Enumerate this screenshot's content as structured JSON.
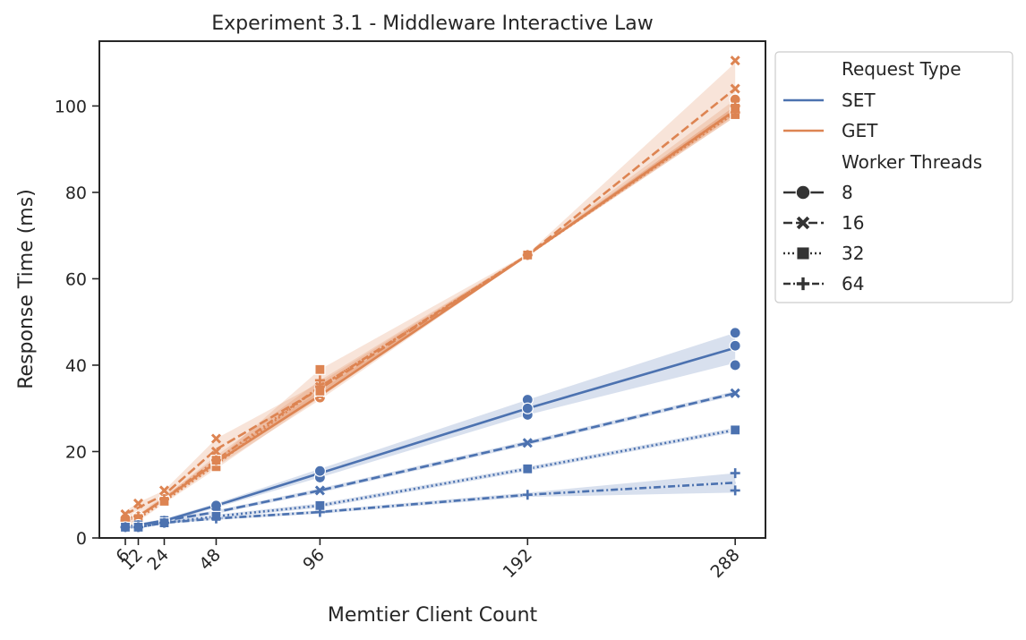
{
  "chart_data": {
    "type": "line",
    "title": "Experiment 3.1 - Middleware Interactive Law",
    "xlabel": "Memtier Client Count",
    "ylabel": "Response Time (ms)",
    "x": [
      6,
      12,
      24,
      48,
      96,
      192,
      288
    ],
    "x_tick_labels": [
      "6",
      "12",
      "24",
      "48",
      "96",
      "192",
      "288"
    ],
    "xlim": [
      -6,
      302
    ],
    "ylim": [
      0,
      115
    ],
    "y_ticks": [
      0,
      20,
      40,
      60,
      80,
      100
    ],
    "y_tick_labels": [
      "0",
      "20",
      "40",
      "60",
      "80",
      "100"
    ],
    "grid": false,
    "legend": {
      "placement": "outside-right",
      "hue_title": "Request Type",
      "style_title": "Worker Threads",
      "hue_entries": [
        "SET",
        "GET"
      ],
      "style_entries": [
        "8",
        "16",
        "32",
        "64"
      ]
    },
    "colors": {
      "SET": "#4c72b0",
      "GET": "#dd8452",
      "style_legend": "#333333"
    },
    "series": [
      {
        "request_type": "GET",
        "worker_threads": "8",
        "marker": "circle",
        "values": [
          4.5,
          5.0,
          9.0,
          17.5,
          33.0,
          65.5,
          99.0
        ],
        "ci_low": [
          4.0,
          4.5,
          8.5,
          16.5,
          32.0,
          65.3,
          97.5
        ],
        "ci_high": [
          5.0,
          5.8,
          9.6,
          18.5,
          34.0,
          65.8,
          101.5
        ],
        "points": [
          [
            6,
            4.5
          ],
          [
            12,
            4.9
          ],
          [
            24,
            9.0
          ],
          [
            48,
            17.5
          ],
          [
            96,
            32.5
          ],
          [
            96,
            33.5
          ],
          [
            192,
            65.5
          ],
          [
            288,
            98.5
          ],
          [
            288,
            101.5
          ]
        ]
      },
      {
        "request_type": "GET",
        "worker_threads": "16",
        "marker": "x",
        "values": [
          5.5,
          7.0,
          10.0,
          20.5,
          34.5,
          65.5,
          104.0
        ],
        "ci_low": [
          4.8,
          6.0,
          9.0,
          18.0,
          33.0,
          65.3,
          98.0
        ],
        "ci_high": [
          6.2,
          8.2,
          11.0,
          23.0,
          36.0,
          65.8,
          110.0
        ],
        "points": [
          [
            6,
            5.5
          ],
          [
            12,
            8.0
          ],
          [
            24,
            11.0
          ],
          [
            48,
            23.0
          ],
          [
            48,
            20.0
          ],
          [
            96,
            33.0
          ],
          [
            96,
            35.0
          ],
          [
            192,
            65.5
          ],
          [
            288,
            104.0
          ],
          [
            288,
            110.5
          ],
          [
            288,
            99.0
          ]
        ]
      },
      {
        "request_type": "GET",
        "worker_threads": "32",
        "marker": "square",
        "values": [
          2.5,
          4.5,
          8.5,
          17.0,
          35.0,
          65.5,
          98.5
        ],
        "ci_low": [
          2.0,
          3.8,
          8.0,
          16.0,
          32.5,
          65.3,
          97.5
        ],
        "ci_high": [
          3.0,
          5.2,
          9.0,
          18.0,
          39.0,
          65.8,
          100.0
        ],
        "points": [
          [
            6,
            2.3
          ],
          [
            12,
            4.5
          ],
          [
            24,
            8.5
          ],
          [
            48,
            16.5
          ],
          [
            48,
            18.0
          ],
          [
            96,
            39.0
          ],
          [
            96,
            34.0
          ],
          [
            192,
            65.5
          ],
          [
            288,
            98.0
          ],
          [
            288,
            99.5
          ]
        ]
      },
      {
        "request_type": "GET",
        "worker_threads": "64",
        "marker": "plus",
        "values": [
          4.0,
          5.0,
          9.0,
          18.0,
          35.0,
          65.5,
          99.0
        ],
        "ci_low": [
          3.5,
          4.5,
          8.5,
          17.0,
          33.5,
          65.3,
          98.0
        ],
        "ci_high": [
          4.5,
          5.5,
          9.5,
          19.0,
          36.5,
          65.8,
          100.0
        ],
        "points": [
          [
            6,
            4.0
          ],
          [
            12,
            5.0
          ],
          [
            24,
            9.0
          ],
          [
            48,
            18.0
          ],
          [
            96,
            35.0
          ],
          [
            96,
            36.5
          ],
          [
            192,
            65.5
          ],
          [
            288,
            98.5
          ],
          [
            288,
            100.0
          ]
        ]
      },
      {
        "request_type": "SET",
        "worker_threads": "8",
        "marker": "circle",
        "values": [
          2.5,
          3.0,
          4.0,
          7.5,
          15.0,
          30.0,
          44.0
        ],
        "ci_low": [
          2.2,
          2.7,
          3.6,
          7.0,
          14.0,
          28.5,
          40.5
        ],
        "ci_high": [
          2.8,
          3.3,
          4.4,
          8.0,
          16.0,
          32.0,
          47.5
        ],
        "points": [
          [
            6,
            2.5
          ],
          [
            12,
            3.0
          ],
          [
            24,
            4.0
          ],
          [
            48,
            7.5
          ],
          [
            96,
            14.0
          ],
          [
            96,
            15.5
          ],
          [
            192,
            28.5
          ],
          [
            192,
            32.0
          ],
          [
            192,
            30.0
          ],
          [
            288,
            40.0
          ],
          [
            288,
            44.5
          ],
          [
            288,
            47.5
          ]
        ]
      },
      {
        "request_type": "SET",
        "worker_threads": "16",
        "marker": "x",
        "values": [
          2.5,
          3.0,
          4.0,
          6.0,
          11.0,
          22.0,
          33.5
        ],
        "ci_low": [
          2.2,
          2.7,
          3.6,
          5.6,
          10.5,
          21.5,
          33.0
        ],
        "ci_high": [
          2.8,
          3.3,
          4.4,
          6.4,
          11.5,
          22.5,
          34.0
        ],
        "points": [
          [
            6,
            2.5
          ],
          [
            12,
            3.0
          ],
          [
            24,
            4.0
          ],
          [
            48,
            6.0
          ],
          [
            96,
            11.0
          ],
          [
            192,
            22.0
          ],
          [
            288,
            33.5
          ]
        ]
      },
      {
        "request_type": "SET",
        "worker_threads": "32",
        "marker": "square",
        "values": [
          2.5,
          2.5,
          3.5,
          5.0,
          7.5,
          16.0,
          25.0
        ],
        "ci_low": [
          2.2,
          2.2,
          3.2,
          4.6,
          7.0,
          15.5,
          24.5
        ],
        "ci_high": [
          2.8,
          2.8,
          3.8,
          5.4,
          8.0,
          16.5,
          25.5
        ],
        "points": [
          [
            6,
            2.5
          ],
          [
            12,
            2.5
          ],
          [
            24,
            3.5
          ],
          [
            48,
            5.0
          ],
          [
            96,
            7.5
          ],
          [
            192,
            16.0
          ],
          [
            288,
            25.0
          ]
        ]
      },
      {
        "request_type": "SET",
        "worker_threads": "64",
        "marker": "plus",
        "values": [
          2.5,
          2.5,
          3.5,
          4.5,
          6.0,
          10.0,
          12.8
        ],
        "ci_low": [
          2.2,
          2.2,
          3.2,
          4.2,
          5.6,
          9.5,
          10.5
        ],
        "ci_high": [
          2.8,
          2.8,
          3.8,
          4.8,
          6.4,
          10.5,
          15.0
        ],
        "points": [
          [
            6,
            2.5
          ],
          [
            12,
            2.5
          ],
          [
            24,
            3.5
          ],
          [
            48,
            4.5
          ],
          [
            96,
            6.0
          ],
          [
            192,
            10.0
          ],
          [
            288,
            11.0
          ],
          [
            288,
            15.0
          ]
        ]
      }
    ]
  }
}
